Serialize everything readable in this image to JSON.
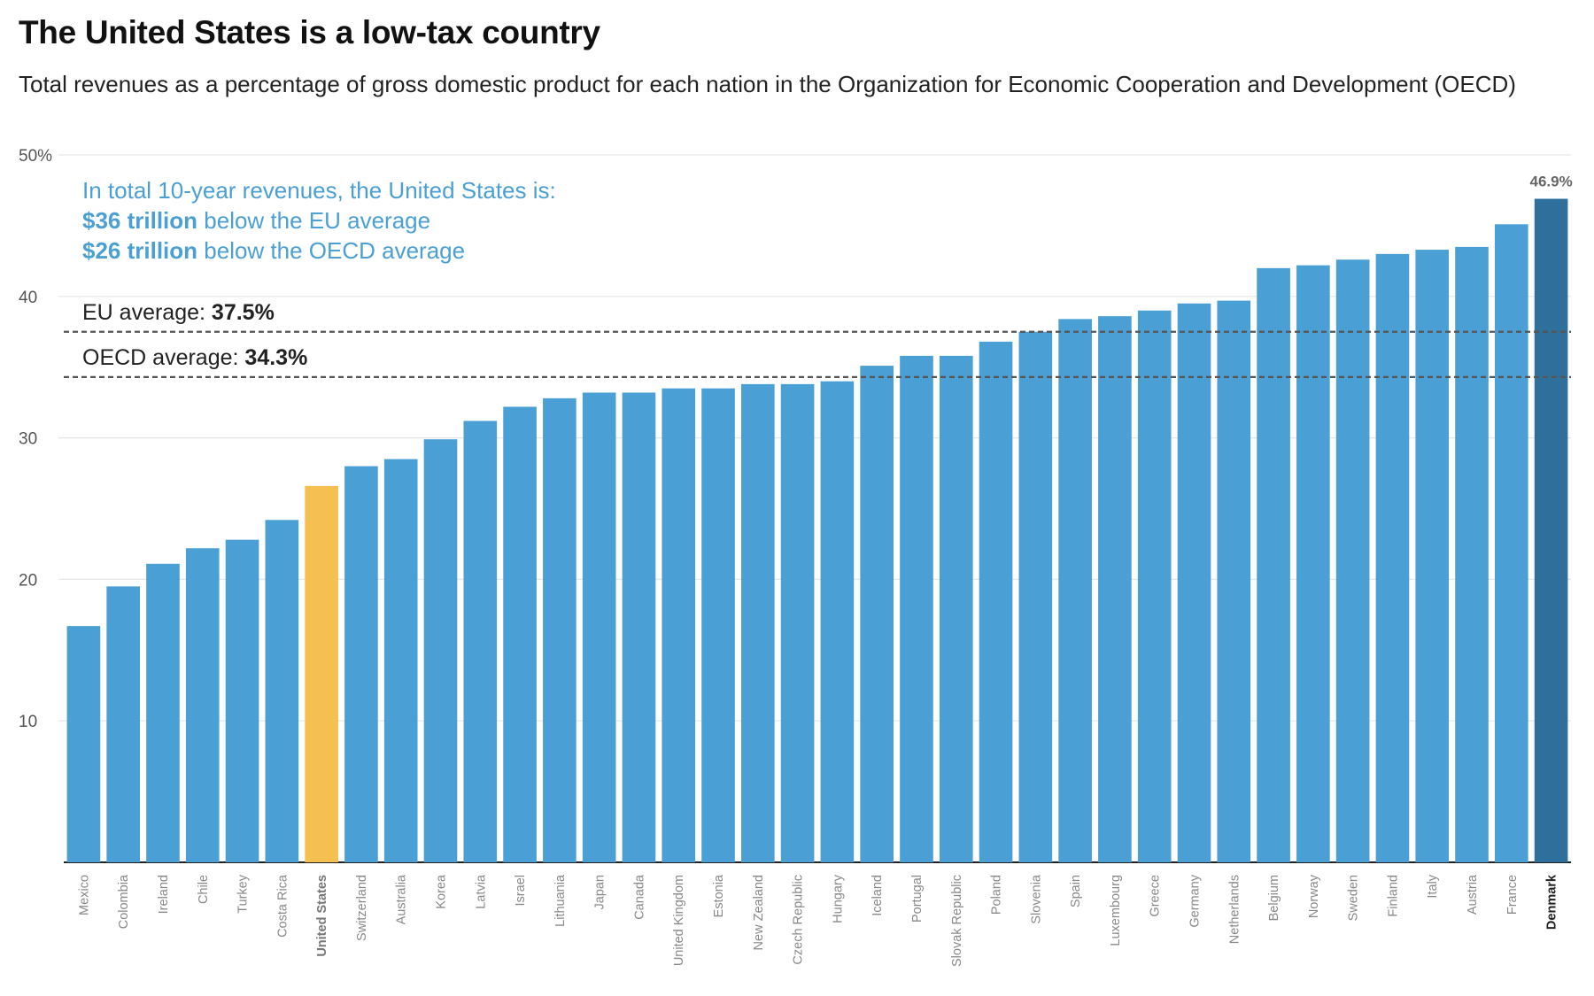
{
  "chart_data": {
    "type": "bar",
    "title": "The United States is a low-tax country",
    "subtitle": "Total revenues as a percentage of gross domestic product for each nation in the Organization for Economic Cooperation and Development (OECD)",
    "xlabel": "",
    "ylabel": "",
    "ylim": [
      0,
      50
    ],
    "yticks": [
      {
        "value": 50,
        "label": "50%"
      },
      {
        "value": 40,
        "label": "40"
      },
      {
        "value": 30,
        "label": "30"
      },
      {
        "value": 20,
        "label": "20"
      },
      {
        "value": 10,
        "label": "10"
      }
    ],
    "grid": true,
    "categories": [
      "Mexico",
      "Colombia",
      "Ireland",
      "Chile",
      "Turkey",
      "Costa Rica",
      "United States",
      "Switzerland",
      "Australia",
      "Korea",
      "Latvia",
      "Israel",
      "Lithuania",
      "Japan",
      "Canada",
      "United Kingdom",
      "Estonia",
      "New Zealand",
      "Czech Republic",
      "Hungary",
      "Iceland",
      "Portugal",
      "Slovak Republic",
      "Poland",
      "Slovenia",
      "Spain",
      "Luxembourg",
      "Greece",
      "Germany",
      "Netherlands",
      "Belgium",
      "Norway",
      "Sweden",
      "Finland",
      "Italy",
      "Austria",
      "France",
      "Denmark"
    ],
    "values": [
      16.7,
      19.5,
      21.1,
      22.2,
      22.8,
      24.2,
      26.6,
      28.0,
      28.5,
      29.9,
      31.2,
      32.2,
      32.8,
      33.2,
      33.2,
      33.5,
      33.5,
      33.8,
      33.8,
      34.0,
      35.1,
      35.8,
      35.8,
      36.8,
      37.5,
      38.4,
      38.6,
      39.0,
      39.5,
      39.7,
      42.0,
      42.2,
      42.6,
      43.0,
      43.3,
      43.5,
      45.1,
      46.9
    ],
    "highlight": {
      "category": "United States",
      "color": "#f5bf52"
    },
    "max_bar": {
      "category": "Denmark",
      "color": "#2f6f9c",
      "label": "46.9%"
    },
    "bar_color": "#4a9fd4",
    "reference_lines": [
      {
        "value": 37.5,
        "label_prefix": "EU average: ",
        "label_value": "37.5%"
      },
      {
        "value": 34.3,
        "label_prefix": "OECD average: ",
        "label_value": "34.3%"
      }
    ],
    "annotation": {
      "line1": "In total 10-year revenues, the United States is:",
      "line2_bold": "$36 trillion",
      "line2_rest": " below the EU average",
      "line3_bold": "$26 trillion",
      "line3_rest": " below the OECD average",
      "color": "#4a9fd4"
    }
  }
}
